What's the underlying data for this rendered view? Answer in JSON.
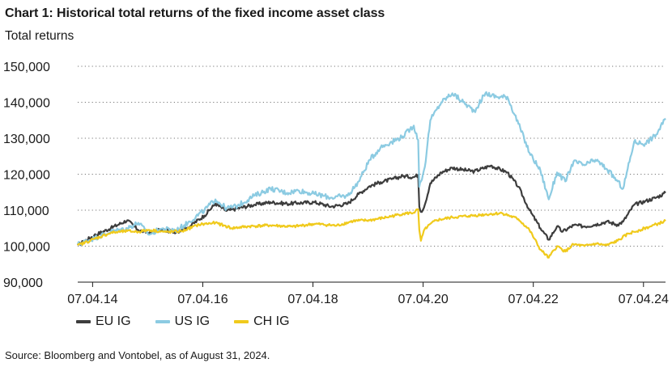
{
  "chart_data": {
    "type": "line",
    "title": "Chart 1: Historical total returns of the fixed income asset class",
    "ylabel": "Total returns",
    "xlabel": "",
    "ylim": [
      90000,
      150000
    ],
    "yticks": [
      90000,
      100000,
      110000,
      120000,
      130000,
      140000,
      150000
    ],
    "ytick_labels": [
      "90,000",
      "100,000",
      "110,000",
      "120,000",
      "130,000",
      "140,000",
      "150,000"
    ],
    "xlim": [
      2014.0,
      2024.67
    ],
    "xticks": [
      2014.27,
      2016.27,
      2018.27,
      2020.27,
      2022.27,
      2024.27
    ],
    "xtick_labels": [
      "07.04.14",
      "07.04.16",
      "07.04.18",
      "07.04.20",
      "07.04.22",
      "07.04.24"
    ],
    "grid": "horizontal dotted",
    "legend_position": "bottom-left",
    "source": "Source: Bloomberg and Vontobel, as of August 31, 2024.",
    "series": [
      {
        "name": "EU IG",
        "color": "#3d3d3d",
        "x": [
          2014.0,
          2014.3,
          2014.6,
          2014.9,
          2015.1,
          2015.3,
          2015.5,
          2015.8,
          2016.0,
          2016.3,
          2016.5,
          2016.7,
          2016.9,
          2017.2,
          2017.5,
          2017.8,
          2018.0,
          2018.3,
          2018.6,
          2018.9,
          2019.1,
          2019.3,
          2019.5,
          2019.7,
          2019.9,
          2020.1,
          2020.18,
          2020.2,
          2020.23,
          2020.3,
          2020.4,
          2020.6,
          2020.8,
          2021.0,
          2021.2,
          2021.5,
          2021.8,
          2022.0,
          2022.2,
          2022.4,
          2022.55,
          2022.7,
          2022.8,
          2023.0,
          2023.2,
          2023.4,
          2023.6,
          2023.8,
          2023.9,
          2024.1,
          2024.3,
          2024.5,
          2024.67
        ],
        "values": [
          100300,
          103000,
          105000,
          107200,
          104500,
          103700,
          104500,
          104000,
          105200,
          108500,
          111800,
          109800,
          110500,
          111500,
          112200,
          111800,
          112000,
          112200,
          111000,
          111800,
          114500,
          116700,
          117800,
          118600,
          119500,
          119200,
          119800,
          111000,
          109500,
          111500,
          117500,
          120500,
          121800,
          121200,
          120800,
          122400,
          120500,
          116500,
          110000,
          105000,
          101800,
          105500,
          104000,
          105800,
          105500,
          106000,
          106800,
          106000,
          106800,
          111500,
          112500,
          113500,
          114800
        ]
      },
      {
        "name": "US IG",
        "color": "#8ccbe2",
        "x": [
          2014.0,
          2014.3,
          2014.6,
          2014.9,
          2015.1,
          2015.3,
          2015.5,
          2015.8,
          2016.0,
          2016.3,
          2016.5,
          2016.7,
          2016.9,
          2017.2,
          2017.5,
          2017.8,
          2018.0,
          2018.3,
          2018.6,
          2018.9,
          2019.1,
          2019.3,
          2019.5,
          2019.7,
          2019.9,
          2020.1,
          2020.18,
          2020.2,
          2020.23,
          2020.3,
          2020.4,
          2020.6,
          2020.8,
          2021.0,
          2021.2,
          2021.4,
          2021.6,
          2021.8,
          2022.0,
          2022.2,
          2022.4,
          2022.55,
          2022.7,
          2022.85,
          2023.0,
          2023.2,
          2023.4,
          2023.6,
          2023.8,
          2023.9,
          2024.1,
          2024.3,
          2024.5,
          2024.67
        ],
        "values": [
          100500,
          102200,
          104000,
          105000,
          106500,
          103200,
          104800,
          104500,
          106500,
          110000,
          113000,
          110500,
          111200,
          114000,
          116000,
          114800,
          115500,
          114500,
          113500,
          114000,
          118000,
          124000,
          127500,
          129000,
          130500,
          133500,
          129500,
          116500,
          118000,
          122000,
          135000,
          140000,
          142500,
          140000,
          137500,
          142500,
          141500,
          141500,
          134000,
          126000,
          121000,
          113000,
          120500,
          118000,
          123500,
          122500,
          124000,
          121500,
          118000,
          116000,
          129000,
          128500,
          131000,
          135500
        ]
      },
      {
        "name": "CH IG",
        "color": "#f0ca1c",
        "x": [
          2014.0,
          2014.3,
          2014.6,
          2014.9,
          2015.1,
          2015.3,
          2015.6,
          2015.9,
          2016.2,
          2016.5,
          2016.8,
          2017.1,
          2017.5,
          2017.9,
          2018.3,
          2018.7,
          2019.0,
          2019.3,
          2019.6,
          2019.9,
          2020.1,
          2020.18,
          2020.2,
          2020.23,
          2020.3,
          2020.5,
          2020.8,
          2021.1,
          2021.4,
          2021.7,
          2022.0,
          2022.2,
          2022.4,
          2022.55,
          2022.7,
          2022.85,
          2023.0,
          2023.2,
          2023.4,
          2023.6,
          2023.8,
          2024.0,
          2024.2,
          2024.4,
          2024.67
        ],
        "values": [
          100200,
          102000,
          103700,
          104200,
          104000,
          104500,
          103900,
          104200,
          106000,
          106500,
          105000,
          105500,
          105800,
          105400,
          106200,
          105700,
          107000,
          107200,
          108000,
          109000,
          109300,
          110200,
          104500,
          101500,
          104800,
          107200,
          108000,
          108400,
          108800,
          109200,
          107500,
          104500,
          99000,
          96800,
          100000,
          98500,
          100500,
          100000,
          100700,
          100200,
          101500,
          103500,
          104500,
          105500,
          107000
        ]
      }
    ]
  }
}
